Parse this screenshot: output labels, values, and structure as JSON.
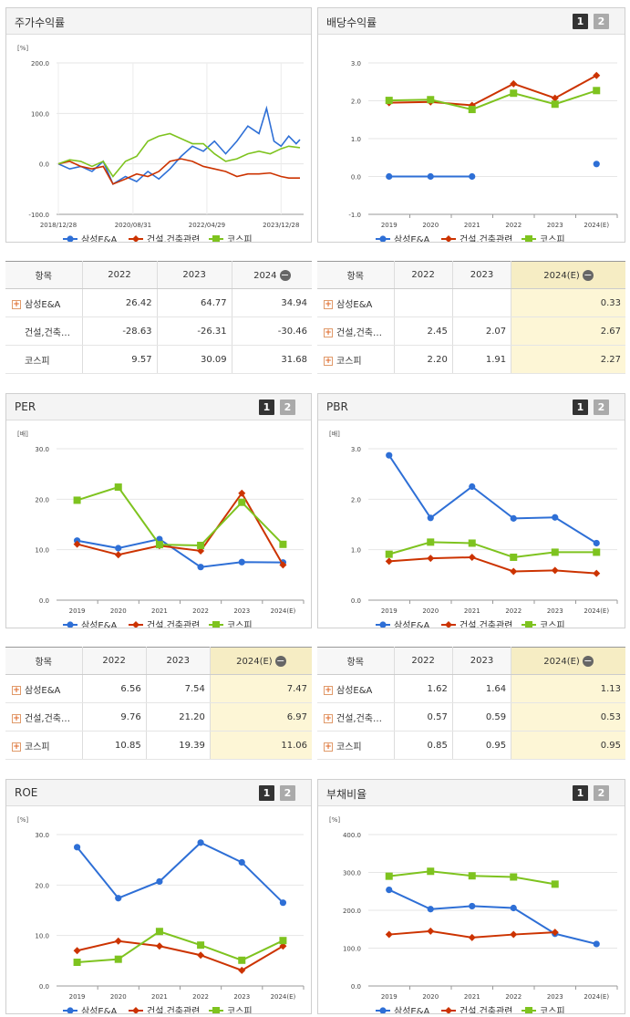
{
  "legend": {
    "s1": "삼성E&A",
    "s2": "건설,건축관련",
    "s3": "코스피"
  },
  "colors": {
    "s1": "#2e6fd6",
    "s2": "#cc3300",
    "s3": "#7ec31f"
  },
  "panels": {
    "stock": {
      "title": "주가수익률"
    },
    "dividend": {
      "title": "배당수익률",
      "btn1": "1",
      "btn2": "2"
    },
    "per": {
      "title": "PER",
      "btn1": "1",
      "btn2": "2"
    },
    "pbr": {
      "title": "PBR",
      "btn1": "1",
      "btn2": "2"
    },
    "roe": {
      "title": "ROE",
      "btn1": "1",
      "btn2": "2"
    },
    "debt": {
      "title": "부채비율",
      "btn1": "1",
      "btn2": "2"
    }
  },
  "tables": {
    "stock": {
      "headers": [
        "항목",
        "2022",
        "2023",
        "2024"
      ],
      "rows": [
        {
          "label": "삼성E&A",
          "plus": true,
          "values": [
            "26.42",
            "64.77",
            "34.94"
          ]
        },
        {
          "label": "건설,건축…",
          "plus": false,
          "values": [
            "-28.63",
            "-26.31",
            "-30.46"
          ]
        },
        {
          "label": "코스피",
          "plus": false,
          "values": [
            "9.57",
            "30.09",
            "31.68"
          ]
        }
      ]
    },
    "dividend": {
      "headers": [
        "항목",
        "2022",
        "2023",
        "2024(E)"
      ],
      "rows": [
        {
          "label": "삼성E&A",
          "plus": true,
          "values": [
            "",
            "",
            "0.33"
          ]
        },
        {
          "label": "건설,건축…",
          "plus": true,
          "values": [
            "2.45",
            "2.07",
            "2.67"
          ]
        },
        {
          "label": "코스피",
          "plus": true,
          "values": [
            "2.20",
            "1.91",
            "2.27"
          ]
        }
      ]
    },
    "per": {
      "headers": [
        "항목",
        "2022",
        "2023",
        "2024(E)"
      ],
      "rows": [
        {
          "label": "삼성E&A",
          "plus": true,
          "values": [
            "6.56",
            "7.54",
            "7.47"
          ]
        },
        {
          "label": "건설,건축…",
          "plus": true,
          "values": [
            "9.76",
            "21.20",
            "6.97"
          ]
        },
        {
          "label": "코스피",
          "plus": true,
          "values": [
            "10.85",
            "19.39",
            "11.06"
          ]
        }
      ]
    },
    "pbr": {
      "headers": [
        "항목",
        "2022",
        "2023",
        "2024(E)"
      ],
      "rows": [
        {
          "label": "삼성E&A",
          "plus": true,
          "values": [
            "1.62",
            "1.64",
            "1.13"
          ]
        },
        {
          "label": "건설,건축…",
          "plus": true,
          "values": [
            "0.57",
            "0.59",
            "0.53"
          ]
        },
        {
          "label": "코스피",
          "plus": true,
          "values": [
            "0.85",
            "0.95",
            "0.95"
          ]
        }
      ]
    }
  },
  "chart_data": [
    {
      "id": "stock",
      "type": "line",
      "unit": "[%]",
      "ylim": [
        -100,
        200
      ],
      "yticks": [
        "200.0",
        "100.0",
        "0.0",
        "-100.0"
      ],
      "xticks": [
        "2018/12/28",
        "2020/08/31",
        "2022/04/29",
        "2023/12/28"
      ],
      "x_range": [
        "2018/12/28",
        "2024/05/31"
      ],
      "series": [
        {
          "name": "삼성E&A",
          "x": [
            "2018/12/28",
            "2019/03/31",
            "2019/06/30",
            "2019/09/30",
            "2019/12/31",
            "2020/03/20",
            "2020/06/30",
            "2020/09/30",
            "2020/12/31",
            "2021/03/31",
            "2021/06/30",
            "2021/09/30",
            "2021/12/31",
            "2022/03/31",
            "2022/06/30",
            "2022/09/30",
            "2022/12/31",
            "2023/03/31",
            "2023/06/30",
            "2023/08/31",
            "2023/10/31",
            "2023/12/28",
            "2024/02/29",
            "2024/04/30",
            "2024/05/31"
          ],
          "y": [
            0,
            -10,
            -5,
            -15,
            5,
            -40,
            -25,
            -35,
            -15,
            -30,
            -10,
            15,
            35,
            25,
            45,
            20,
            45,
            75,
            60,
            110,
            45,
            35,
            55,
            40,
            48
          ]
        },
        {
          "name": "건설,건축관련",
          "x": [
            "2018/12/28",
            "2019/03/31",
            "2019/06/30",
            "2019/09/30",
            "2019/12/31",
            "2020/03/20",
            "2020/06/30",
            "2020/09/30",
            "2020/12/31",
            "2021/03/31",
            "2021/06/30",
            "2021/09/30",
            "2021/12/31",
            "2022/03/31",
            "2022/06/30",
            "2022/09/30",
            "2022/12/31",
            "2023/03/31",
            "2023/06/30",
            "2023/09/30",
            "2023/12/28",
            "2024/02/29",
            "2024/05/31"
          ],
          "y": [
            0,
            5,
            -5,
            -10,
            -5,
            -40,
            -30,
            -20,
            -25,
            -15,
            5,
            10,
            5,
            -5,
            -10,
            -15,
            -25,
            -20,
            -20,
            -18,
            -25,
            -28,
            -28
          ]
        },
        {
          "name": "코스피",
          "x": [
            "2018/12/28",
            "2019/03/31",
            "2019/06/30",
            "2019/09/30",
            "2019/12/31",
            "2020/03/20",
            "2020/06/30",
            "2020/09/30",
            "2020/12/31",
            "2021/03/31",
            "2021/06/30",
            "2021/09/30",
            "2021/12/31",
            "2022/03/31",
            "2022/06/30",
            "2022/09/30",
            "2022/12/31",
            "2023/03/31",
            "2023/06/30",
            "2023/09/30",
            "2023/12/28",
            "2024/02/29",
            "2024/05/31"
          ],
          "y": [
            0,
            8,
            5,
            -5,
            5,
            -25,
            5,
            15,
            45,
            55,
            60,
            50,
            40,
            40,
            20,
            5,
            10,
            20,
            25,
            20,
            30,
            35,
            32
          ]
        }
      ]
    },
    {
      "id": "dividend",
      "type": "line",
      "unit": "",
      "ylim": [
        -1,
        3
      ],
      "yticks": [
        "3.0",
        "2.0",
        "1.0",
        "0.0",
        "-1.0"
      ],
      "categories": [
        "2019",
        "2020",
        "2021",
        "2022",
        "2023",
        "2024(E)"
      ],
      "series": [
        {
          "name": "삼성E&A",
          "values": [
            0.0,
            0.0,
            0.0,
            null,
            null,
            0.33
          ]
        },
        {
          "name": "건설,건축관련",
          "values": [
            1.95,
            1.97,
            1.88,
            2.45,
            2.07,
            2.67
          ]
        },
        {
          "name": "코스피",
          "values": [
            2.01,
            2.03,
            1.77,
            2.2,
            1.91,
            2.27
          ]
        }
      ]
    },
    {
      "id": "per",
      "type": "line",
      "unit": "[배]",
      "ylim": [
        0,
        30
      ],
      "yticks": [
        "30.0",
        "20.0",
        "10.0",
        "0.0"
      ],
      "categories": [
        "2019",
        "2020",
        "2021",
        "2022",
        "2023",
        "2024(E)"
      ],
      "series": [
        {
          "name": "삼성E&A",
          "values": [
            11.8,
            10.3,
            12.1,
            6.56,
            7.54,
            7.47
          ]
        },
        {
          "name": "건설,건축관련",
          "values": [
            11.1,
            9.0,
            10.8,
            9.76,
            21.2,
            6.97
          ]
        },
        {
          "name": "코스피",
          "values": [
            19.8,
            22.4,
            11.0,
            10.85,
            19.39,
            11.06
          ]
        }
      ]
    },
    {
      "id": "pbr",
      "type": "line",
      "unit": "[배]",
      "ylim": [
        0,
        3
      ],
      "yticks": [
        "3.0",
        "2.0",
        "1.0",
        "0.0"
      ],
      "categories": [
        "2019",
        "2020",
        "2021",
        "2022",
        "2023",
        "2024(E)"
      ],
      "series": [
        {
          "name": "삼성E&A",
          "values": [
            2.87,
            1.63,
            2.25,
            1.62,
            1.64,
            1.13
          ]
        },
        {
          "name": "건설,건축관련",
          "values": [
            0.77,
            0.83,
            0.85,
            0.57,
            0.59,
            0.53
          ]
        },
        {
          "name": "코스피",
          "values": [
            0.91,
            1.15,
            1.13,
            0.85,
            0.95,
            0.95
          ]
        }
      ]
    },
    {
      "id": "roe",
      "type": "line",
      "unit": "[%]",
      "ylim": [
        0,
        30
      ],
      "yticks": [
        "30.0",
        "20.0",
        "10.0",
        "0.0"
      ],
      "categories": [
        "2019",
        "2020",
        "2021",
        "2022",
        "2023",
        "2024(E)"
      ],
      "series": [
        {
          "name": "삼성E&A",
          "values": [
            27.5,
            17.4,
            20.7,
            28.4,
            24.5,
            16.5
          ]
        },
        {
          "name": "건설,건축관련",
          "values": [
            7.0,
            8.9,
            7.9,
            6.1,
            3.1,
            7.9
          ]
        },
        {
          "name": "코스피",
          "values": [
            4.7,
            5.3,
            10.8,
            8.1,
            5.1,
            9.0
          ]
        }
      ]
    },
    {
      "id": "debt",
      "type": "line",
      "unit": "[%]",
      "ylim": [
        0,
        400
      ],
      "yticks": [
        "400.0",
        "300.0",
        "200.0",
        "100.0",
        "0.0"
      ],
      "categories": [
        "2019",
        "2020",
        "2021",
        "2022",
        "2023",
        "2024(E)"
      ],
      "series": [
        {
          "name": "삼성E&A",
          "values": [
            254,
            203,
            211,
            206,
            138,
            111
          ]
        },
        {
          "name": "건설,건축관련",
          "values": [
            136,
            145,
            128,
            136,
            142,
            null
          ]
        },
        {
          "name": "코스피",
          "values": [
            290,
            303,
            291,
            288,
            269,
            null
          ]
        }
      ]
    }
  ]
}
